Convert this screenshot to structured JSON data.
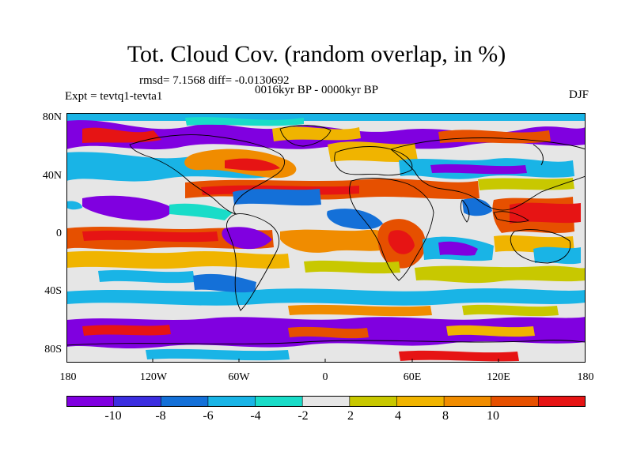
{
  "title": "Tot. Cloud Cov. (random overlap, in %)",
  "subtitle_stats": "rmsd= 7.1568 diff= -0.0130692",
  "period": "0016kyr BP - 0000kyr BP",
  "experiment": "Expt = tevtq1-tevta1",
  "season": "DJF",
  "map": {
    "lat_labels": [
      "80N",
      "40N",
      "0",
      "40S",
      "80S"
    ],
    "lon_labels": [
      "180",
      "120W",
      "60W",
      "0",
      "60E",
      "120E",
      "180"
    ]
  },
  "colorbar": {
    "tick_labels": [
      "-10",
      "-8",
      "-6",
      "-4",
      "-2",
      "2",
      "4",
      "8",
      "10"
    ],
    "colors": [
      "#8000e0",
      "#3c2ee0",
      "#1470d8",
      "#19b4e6",
      "#19dcc8",
      "#e6e6e6",
      "#c8c800",
      "#f0b400",
      "#f08c00",
      "#e65000",
      "#e61414"
    ]
  }
}
